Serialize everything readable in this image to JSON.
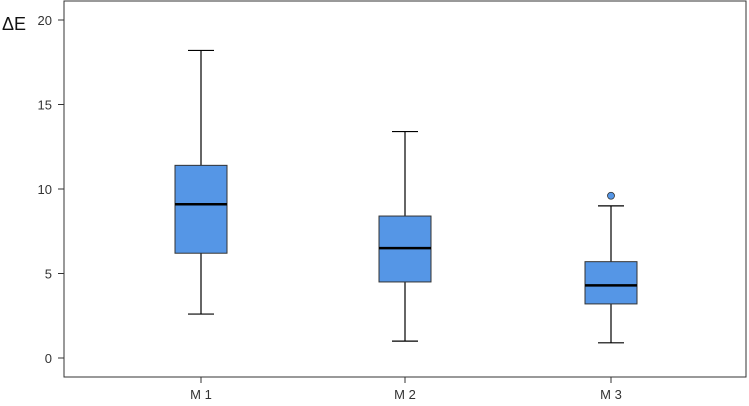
{
  "chart_data": {
    "type": "boxplot",
    "ylabel": "ΔE",
    "xlabel": "",
    "ylim": [
      -1,
      21
    ],
    "yticks": [
      0,
      5,
      10,
      15,
      20
    ],
    "grid": false,
    "categories": [
      "M 1",
      "M 2",
      "M 3"
    ],
    "boxes": [
      {
        "category": "M 1",
        "whisker_low": 2.6,
        "q1": 6.2,
        "median": 9.1,
        "q3": 11.4,
        "whisker_high": 18.2,
        "outliers": []
      },
      {
        "category": "M 2",
        "whisker_low": 1.0,
        "q1": 4.5,
        "median": 6.5,
        "q3": 8.4,
        "whisker_high": 13.4,
        "outliers": []
      },
      {
        "category": "M 3",
        "whisker_low": 0.9,
        "q1": 3.2,
        "median": 4.3,
        "q3": 5.7,
        "whisker_high": 9.0,
        "outliers": [
          9.6
        ]
      }
    ],
    "box_color": "#5596e6",
    "line_color": "#000000"
  }
}
